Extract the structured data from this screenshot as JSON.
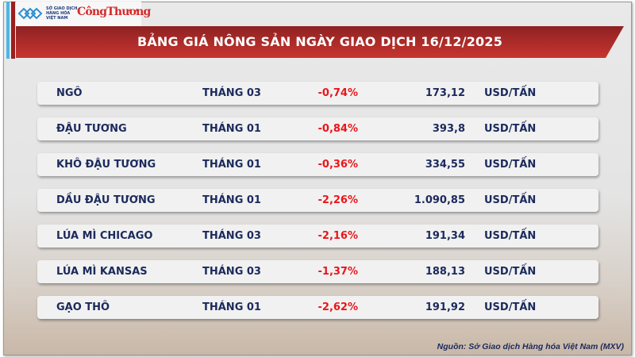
{
  "logo": {
    "exchange_name": "SỞ GIAO DỊCH HÀNG HÓA VIỆT NAM",
    "publisher": "CôngThương"
  },
  "title": "BẢNG GIÁ NÔNG SẢN NGÀY GIAO DỊCH 16/12/2025",
  "rows": [
    {
      "name": "NGÔ",
      "month": "THÁNG 03",
      "change": "-0,74%",
      "price": "173,12",
      "unit": "USD/TẤN"
    },
    {
      "name": "ĐẬU TƯƠNG",
      "month": "THÁNG 01",
      "change": "-0,84%",
      "price": "393,8",
      "unit": "USD/TẤN"
    },
    {
      "name": "KHÔ ĐẬU TƯƠNG",
      "month": "THÁNG 01",
      "change": "-0,36%",
      "price": "334,55",
      "unit": "USD/TẤN"
    },
    {
      "name": "DẦU ĐẬU TƯƠNG",
      "month": "THÁNG 01",
      "change": "-2,26%",
      "price": "1.090,85",
      "unit": "USD/TẤN"
    },
    {
      "name": "LÚA MÌ CHICAGO",
      "month": "THÁNG 03",
      "change": "-2,16%",
      "price": "191,34",
      "unit": "USD/TẤN"
    },
    {
      "name": "LÚA MÌ KANSAS",
      "month": "THÁNG 03",
      "change": "-1,37%",
      "price": "188,13",
      "unit": "USD/TẤN"
    },
    {
      "name": "GẠO THÔ",
      "month": "THÁNG 01",
      "change": "-2,62%",
      "price": "191,92",
      "unit": "USD/TẤN"
    }
  ],
  "source": "Nguồn: Sở Giao dịch Hàng hóa Việt Nam (MXV)",
  "colors": {
    "header": "#b02c2a",
    "negative": "#e8161b",
    "text": "#1b2a5c",
    "accent": "#4fb6e3"
  }
}
